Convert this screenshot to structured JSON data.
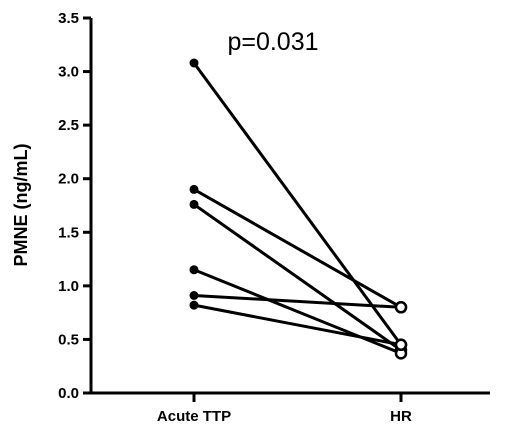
{
  "chart_data": {
    "type": "line",
    "title": "",
    "xlabel": "",
    "ylabel": "PMNE (ng/mL)",
    "categories": [
      "Acute TTP",
      "HR"
    ],
    "ylim": [
      0,
      3.5
    ],
    "yticks": [
      "0.0",
      "0.5",
      "1.0",
      "1.5",
      "2.0",
      "2.5",
      "3.0",
      "3.5"
    ],
    "annotation": "p=0.031",
    "grid": false,
    "legend": "none",
    "line_color": "#000000",
    "series": [
      {
        "values": [
          3.08,
          0.45
        ]
      },
      {
        "values": [
          1.9,
          0.8
        ]
      },
      {
        "values": [
          1.76,
          0.4
        ]
      },
      {
        "values": [
          1.15,
          0.37
        ]
      },
      {
        "values": [
          0.91,
          0.8
        ]
      },
      {
        "values": [
          0.82,
          0.45
        ]
      }
    ]
  }
}
